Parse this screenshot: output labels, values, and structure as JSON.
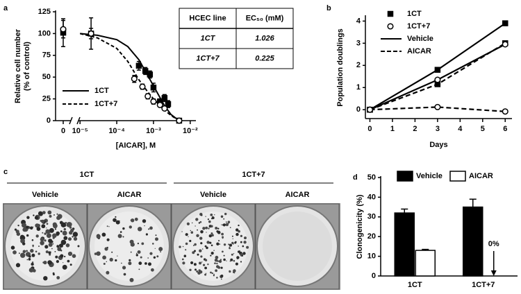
{
  "chart_data": [
    {
      "type": "scatter",
      "label": "a",
      "xlabel": "[AICAR], M",
      "ylabel": [
        "Relative cell number",
        "(% of control)"
      ],
      "xlog": true,
      "xlim": [
        7e-06,
        0.012
      ],
      "xticks": [
        0,
        {
          "value": 1e-05,
          "label": "10⁻⁵"
        },
        {
          "value": 0.0001,
          "label": "10⁻⁴"
        },
        {
          "value": 0.001,
          "label": "10⁻³"
        },
        {
          "value": 0.01,
          "label": "10⁻²"
        }
      ],
      "ylim": [
        0,
        125
      ],
      "yticks": [
        0,
        25,
        50,
        75,
        100,
        125
      ],
      "legend": "lower left",
      "series": [
        {
          "name": "1CT",
          "color": "#000000",
          "marker": "square",
          "dash": false,
          "x": [
            0,
            2e-05,
            0.0004,
            0.0006,
            0.0008,
            0.001,
            0.0015,
            0.002,
            0.0025,
            0.005
          ],
          "values": [
            101,
            100,
            63,
            57,
            53,
            38,
            22,
            26,
            19,
            0
          ],
          "errors": [
            16,
            18,
            5,
            4,
            4,
            5,
            3,
            4,
            4,
            0
          ],
          "fit": {
            "x": [
              1e-05,
              3e-05,
              0.0001,
              0.0002,
              0.0004,
              0.0007,
              0.001,
              0.002,
              0.003,
              0.005
            ],
            "values": [
              100,
              98,
              93,
              85,
              70,
              52,
              40,
              17,
              7,
              0
            ]
          }
        },
        {
          "name": "1CT+7",
          "color": "#000000",
          "marker": "circle",
          "dash": true,
          "x": [
            0,
            2e-05,
            0.0003,
            0.0005,
            0.0007,
            0.001,
            0.0015,
            0.002,
            0.005
          ],
          "values": [
            105,
            100,
            48,
            39,
            28,
            22,
            18,
            14,
            0
          ],
          "errors": [
            10,
            6,
            4,
            3,
            3,
            3,
            2,
            2,
            0
          ],
          "fit": {
            "x": [
              1e-05,
              3e-05,
              0.0001,
              0.0002,
              0.0004,
              0.0007,
              0.001,
              0.002,
              0.003,
              0.005
            ],
            "values": [
              100,
              95,
              83,
              68,
              47,
              33,
              25,
              12,
              6,
              0
            ]
          }
        }
      ],
      "table": {
        "header": [
          "HCEC line",
          "EC₅₀ (mM)"
        ],
        "rows": [
          [
            "1CT",
            "1.026"
          ],
          [
            "1CT+7",
            "0.225"
          ]
        ]
      }
    },
    {
      "type": "line",
      "label": "b",
      "xlabel": "Days",
      "ylabel": "Population doublings",
      "xlim": [
        -0.2,
        6.3
      ],
      "xticks": [
        0,
        1,
        2,
        3,
        4,
        5,
        6
      ],
      "ylim": [
        -0.4,
        4.2
      ],
      "yticks": [
        0,
        1,
        2,
        3,
        4
      ],
      "legend_items": [
        {
          "label": "1CT",
          "marker": "square"
        },
        {
          "label": "1CT+7",
          "marker": "circle"
        },
        {
          "label": "Vehicle",
          "dash": false
        },
        {
          "label": "AICAR",
          "dash": true
        }
      ],
      "series": [
        {
          "color": "#000000",
          "marker": "square",
          "dash": false,
          "x": [
            0,
            3,
            6
          ],
          "values": [
            0,
            1.8,
            3.9
          ]
        },
        {
          "color": "#000000",
          "marker": "square",
          "dash": true,
          "x": [
            0,
            3,
            6
          ],
          "values": [
            0,
            1.15,
            3.0
          ]
        },
        {
          "color": "#000000",
          "marker": "circle",
          "dash": false,
          "x": [
            0,
            3,
            6
          ],
          "values": [
            0,
            1.35,
            2.95
          ]
        },
        {
          "color": "#000000",
          "marker": "circle",
          "dash": true,
          "x": [
            0,
            3,
            6
          ],
          "values": [
            0,
            0.12,
            -0.08
          ]
        }
      ]
    },
    {
      "type": "bar",
      "label": "d",
      "ylabel": "Clonogenicity (%)",
      "legend": "top",
      "categories": [
        "1CT",
        "1CT+7"
      ],
      "ylim": [
        0,
        50
      ],
      "yticks": [
        0,
        10,
        20,
        30,
        40,
        50
      ],
      "series": [
        {
          "name": "Vehicle",
          "color": "#000000",
          "values": [
            32,
            35
          ],
          "errors": [
            2,
            4
          ]
        },
        {
          "name": "AICAR",
          "color": "#ffffff",
          "values": [
            13,
            0
          ],
          "errors": [
            0.5,
            0
          ],
          "value_labels": [
            null,
            "0%"
          ]
        }
      ]
    }
  ],
  "plates": {
    "label": "c",
    "groups": [
      {
        "name": "1CT",
        "conditions": [
          "Vehicle",
          "AICAR"
        ]
      },
      {
        "name": "1CT+7",
        "conditions": [
          "Vehicle",
          "AICAR"
        ]
      }
    ]
  }
}
